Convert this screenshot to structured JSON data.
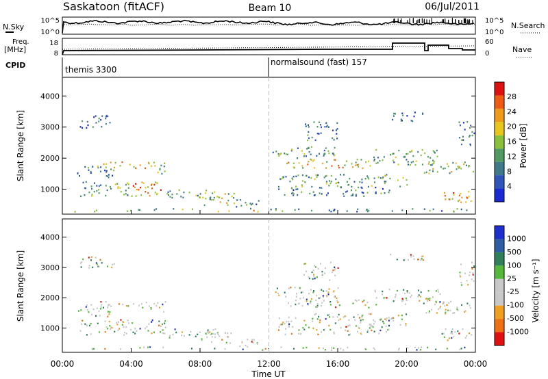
{
  "header": {
    "station": "Saskatoon (fitACF)",
    "beam": "Beam 10",
    "date": "06/Jul/2011"
  },
  "colors": {
    "power_scale": [
      "#1a2bd6",
      "#2e55b8",
      "#3f7a8a",
      "#4e9a60",
      "#8ac13a",
      "#e8c61a",
      "#f09a1a",
      "#ee5a12",
      "#e01010"
    ],
    "velocity_scale": [
      "#1e2fd0",
      "#2e5fa5",
      "#2f7f5a",
      "#55b83a",
      "#c8c8c8",
      "#c8c8c8",
      "#f0a020",
      "#ee7010",
      "#e01010"
    ]
  },
  "chart_data": [
    {
      "type": "line",
      "panel": "noise",
      "left_label": "N.Sky",
      "left_ticks": [
        "10^5",
        "10^0"
      ],
      "right_label": "N.Search",
      "right_ticks": [
        "10^5",
        "10^0"
      ]
    },
    {
      "type": "line",
      "panel": "frequency",
      "left_label": "Freq.",
      "left_label_2": "[MHz]",
      "left_ticks": [
        "18",
        "8"
      ],
      "right_label": "Nave",
      "right_ticks": [
        "60",
        "0"
      ]
    },
    {
      "type": "table",
      "panel": "cpid",
      "label": "CPID",
      "segments": [
        {
          "start_hour": 0,
          "text": "themis 3300"
        },
        {
          "start_hour": 12,
          "text": "normalsound (fast) 157"
        }
      ]
    },
    {
      "type": "heatmap",
      "panel": "power",
      "ylabel": "Slant Range [km]",
      "xlabel": "Time UT",
      "y_ticks": [
        1000,
        2000,
        3000,
        4000
      ],
      "ylim": [
        200,
        4600
      ],
      "x_ticks": [
        "00:00",
        "04:00",
        "08:00",
        "12:00",
        "16:00",
        "20:00",
        "00:00"
      ],
      "xlim": [
        0,
        24
      ],
      "colorbar_label": "Power [dB]",
      "colorbar_ticks": [
        "28",
        "24",
        "20",
        "16",
        "12",
        "8",
        "4"
      ]
    },
    {
      "type": "heatmap",
      "panel": "velocity",
      "ylabel": "Slant Range [km]",
      "xlabel": "Time UT",
      "y_ticks": [
        1000,
        2000,
        3000,
        4000
      ],
      "ylim": [
        200,
        4600
      ],
      "x_ticks": [
        "00:00",
        "04:00",
        "08:00",
        "12:00",
        "16:00",
        "20:00",
        "00:00"
      ],
      "xlim": [
        0,
        24
      ],
      "colorbar_label": "Velocity [m s⁻¹]",
      "colorbar_ticks": [
        "1000",
        "500",
        "100",
        "25",
        "-25",
        "-100",
        "-500",
        "-1000"
      ]
    }
  ]
}
